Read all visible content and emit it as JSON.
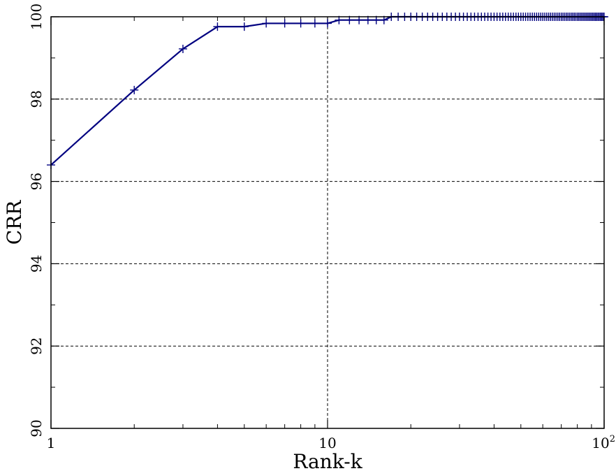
{
  "chart_data": {
    "type": "line",
    "xlabel": "Rank-k",
    "ylabel": "CRR",
    "x_scale": "log",
    "xlim": [
      1,
      100
    ],
    "ylim": [
      90,
      100
    ],
    "x_ticks": [
      {
        "value": 1,
        "label": "1"
      },
      {
        "value": 10,
        "label": "10"
      },
      {
        "value": 100,
        "label": "10",
        "sup": "2"
      }
    ],
    "y_ticks": [
      {
        "value": 90,
        "label": "90"
      },
      {
        "value": 92,
        "label": "92"
      },
      {
        "value": 94,
        "label": "94"
      },
      {
        "value": 96,
        "label": "96"
      },
      {
        "value": 98,
        "label": "98"
      },
      {
        "value": 100,
        "label": "100"
      }
    ],
    "grid": "dashed at major ticks",
    "series": [
      {
        "color": "#000080",
        "marker": "plus",
        "points": [
          [
            1,
            96.4
          ],
          [
            2,
            98.22
          ],
          [
            3,
            99.22
          ],
          [
            4,
            99.76
          ],
          [
            5,
            99.76
          ],
          [
            6,
            99.84
          ],
          [
            7,
            99.84
          ],
          [
            8,
            99.84
          ],
          [
            9,
            99.84
          ],
          [
            10,
            99.84
          ],
          [
            11,
            99.92
          ],
          [
            12,
            99.92
          ],
          [
            13,
            99.92
          ],
          [
            14,
            99.92
          ],
          [
            15,
            99.92
          ],
          [
            16,
            99.92
          ],
          [
            17,
            100
          ],
          [
            18,
            100
          ],
          [
            19,
            100
          ],
          [
            20,
            100
          ],
          [
            21,
            100
          ],
          [
            22,
            100
          ],
          [
            23,
            100
          ],
          [
            24,
            100
          ],
          [
            25,
            100
          ],
          [
            26,
            100
          ],
          [
            27,
            100
          ],
          [
            28,
            100
          ],
          [
            29,
            100
          ],
          [
            30,
            100
          ],
          [
            31,
            100
          ],
          [
            32,
            100
          ],
          [
            33,
            100
          ],
          [
            34,
            100
          ],
          [
            35,
            100
          ],
          [
            36,
            100
          ],
          [
            37,
            100
          ],
          [
            38,
            100
          ],
          [
            39,
            100
          ],
          [
            40,
            100
          ],
          [
            41,
            100
          ],
          [
            42,
            100
          ],
          [
            43,
            100
          ],
          [
            44,
            100
          ],
          [
            45,
            100
          ],
          [
            46,
            100
          ],
          [
            47,
            100
          ],
          [
            48,
            100
          ],
          [
            49,
            100
          ],
          [
            50,
            100
          ],
          [
            51,
            100
          ],
          [
            52,
            100
          ],
          [
            53,
            100
          ],
          [
            54,
            100
          ],
          [
            55,
            100
          ],
          [
            56,
            100
          ],
          [
            57,
            100
          ],
          [
            58,
            100
          ],
          [
            59,
            100
          ],
          [
            60,
            100
          ],
          [
            61,
            100
          ],
          [
            62,
            100
          ],
          [
            63,
            100
          ],
          [
            64,
            100
          ],
          [
            65,
            100
          ],
          [
            66,
            100
          ],
          [
            67,
            100
          ],
          [
            68,
            100
          ],
          [
            69,
            100
          ],
          [
            70,
            100
          ],
          [
            71,
            100
          ],
          [
            72,
            100
          ],
          [
            73,
            100
          ],
          [
            74,
            100
          ],
          [
            75,
            100
          ],
          [
            76,
            100
          ],
          [
            77,
            100
          ],
          [
            78,
            100
          ],
          [
            79,
            100
          ],
          [
            80,
            100
          ],
          [
            81,
            100
          ],
          [
            82,
            100
          ],
          [
            83,
            100
          ],
          [
            84,
            100
          ],
          [
            85,
            100
          ],
          [
            86,
            100
          ],
          [
            87,
            100
          ],
          [
            88,
            100
          ],
          [
            89,
            100
          ],
          [
            90,
            100
          ],
          [
            91,
            100
          ],
          [
            92,
            100
          ],
          [
            93,
            100
          ],
          [
            94,
            100
          ],
          [
            95,
            100
          ],
          [
            96,
            100
          ],
          [
            97,
            100
          ],
          [
            98,
            100
          ],
          [
            99,
            100
          ],
          [
            100,
            100
          ]
        ]
      }
    ]
  }
}
